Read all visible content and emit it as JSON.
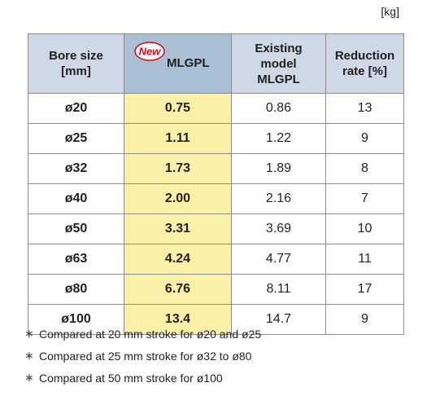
{
  "unit_label": "[kg]",
  "table": {
    "headers": {
      "bore": [
        "Bore size",
        "[mm]"
      ],
      "new_badge": "New",
      "new_model": "MLGPL",
      "existing": [
        "Existing",
        "model",
        "MLGPL"
      ],
      "reduction": [
        "Reduction",
        "rate [%]"
      ]
    },
    "rows": [
      {
        "bore": "ø20",
        "new": "0.75",
        "existing": "0.86",
        "reduction": "13"
      },
      {
        "bore": "ø25",
        "new": "1.11",
        "existing": "1.22",
        "reduction": "9"
      },
      {
        "bore": "ø32",
        "new": "1.73",
        "existing": "1.89",
        "reduction": "8"
      },
      {
        "bore": "ø40",
        "new": "2.00",
        "existing": "2.16",
        "reduction": "7"
      },
      {
        "bore": "ø50",
        "new": "3.31",
        "existing": "3.69",
        "reduction": "10"
      },
      {
        "bore": "ø63",
        "new": "4.24",
        "existing": "4.77",
        "reduction": "11"
      },
      {
        "bore": "ø80",
        "new": "6.76",
        "existing": "8.11",
        "reduction": "17"
      },
      {
        "bore": "ø100",
        "new": "13.4",
        "existing": "14.7",
        "reduction": "9"
      }
    ]
  },
  "notes": [
    {
      "marker": "∗",
      "text": "Compared at 20 mm stroke for ø20 and ø25"
    },
    {
      "marker": "∗",
      "text": "Compared at 25 mm stroke for ø32 to ø80"
    },
    {
      "marker": "∗",
      "text": "Compared at 50 mm stroke for ø100"
    }
  ],
  "colors": {
    "header_bg": "#cfd8e6",
    "new_header_bg": "#a9bfd3",
    "new_column_bg": "#fbf0a8",
    "new_badge_red": "#e60012"
  }
}
